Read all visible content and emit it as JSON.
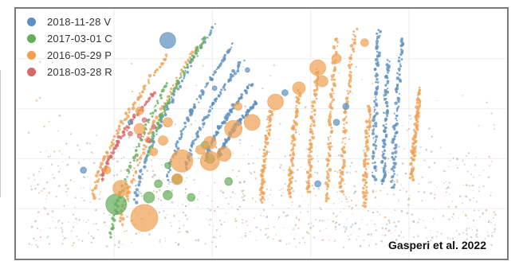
{
  "chart_data": {
    "type": "scatter",
    "title": "",
    "xlabel": "",
    "ylabel": "",
    "grid": true,
    "legend_position": "top-left",
    "series": [
      {
        "name": "2018-11-28 V",
        "color": "#5b8fbf",
        "points": [
          [
            0.3,
            0.91,
            10
          ],
          [
            0.55,
            0.68,
            4
          ],
          [
            0.47,
            0.78,
            3
          ],
          [
            0.12,
            0.34,
            4
          ],
          [
            0.68,
            0.62,
            4
          ],
          [
            0.22,
            0.55,
            3
          ],
          [
            0.35,
            0.6,
            3
          ],
          [
            0.4,
            0.7,
            3
          ],
          [
            0.66,
            0.55,
            4
          ],
          [
            0.62,
            0.28,
            4
          ]
        ]
      },
      {
        "name": "2017-03-01 C",
        "color": "#64ad5a",
        "points": [
          [
            0.19,
            0.19,
            13
          ],
          [
            0.26,
            0.22,
            7
          ],
          [
            0.3,
            0.23,
            6
          ],
          [
            0.35,
            0.22,
            5
          ],
          [
            0.43,
            0.29,
            5
          ],
          [
            0.39,
            0.39,
            6
          ],
          [
            0.38,
            0.45,
            5
          ],
          [
            0.32,
            0.3,
            6
          ],
          [
            0.28,
            0.28,
            5
          ],
          [
            0.3,
            0.36,
            4
          ]
        ]
      },
      {
        "name": "2016-05-29 P",
        "color": "#f0a050",
        "points": [
          [
            0.25,
            0.13,
            17
          ],
          [
            0.2,
            0.26,
            10
          ],
          [
            0.33,
            0.38,
            14
          ],
          [
            0.39,
            0.38,
            12
          ],
          [
            0.44,
            0.52,
            11
          ],
          [
            0.48,
            0.55,
            10
          ],
          [
            0.53,
            0.64,
            10
          ],
          [
            0.58,
            0.7,
            8
          ],
          [
            0.63,
            0.73,
            7
          ],
          [
            0.62,
            0.79,
            10
          ],
          [
            0.66,
            0.83,
            6
          ],
          [
            0.72,
            0.9,
            5
          ],
          [
            0.42,
            0.41,
            9
          ],
          [
            0.39,
            0.46,
            8
          ],
          [
            0.32,
            0.3,
            7
          ],
          [
            0.17,
            0.34,
            5
          ],
          [
            0.45,
            0.62,
            5
          ],
          [
            0.37,
            0.43,
            6
          ],
          [
            0.29,
            0.47,
            6
          ],
          [
            0.27,
            0.42,
            5
          ],
          [
            0.24,
            0.52,
            7
          ],
          [
            0.24,
            0.6,
            5
          ],
          [
            0.3,
            0.55,
            6
          ]
        ]
      },
      {
        "name": "2018-03-28 R",
        "color": "#d46a6a",
        "points": [
          [
            0.24,
            0.49,
            3
          ],
          [
            0.26,
            0.47,
            3
          ],
          [
            0.25,
            0.56,
            3
          ],
          [
            0.22,
            0.5,
            3
          ],
          [
            0.27,
            0.53,
            3
          ]
        ]
      }
    ]
  },
  "credit": "Gasperi et al. 2022"
}
